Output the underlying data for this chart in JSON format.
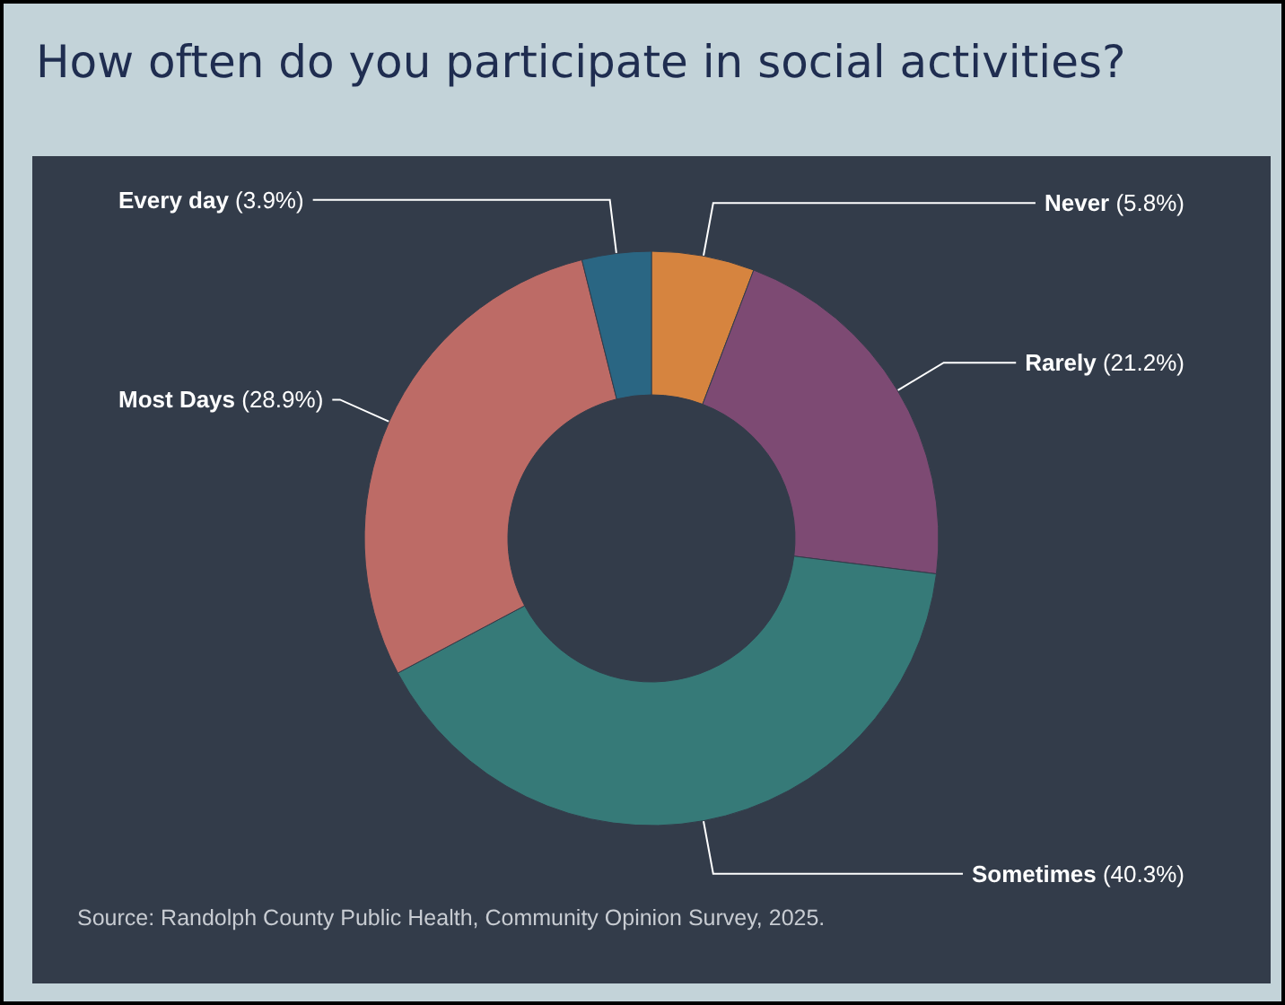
{
  "chart_data": {
    "type": "donut",
    "title": "How often do you participate in social activities?",
    "categories": [
      "Never",
      "Rarely",
      "Sometimes",
      "Most Days",
      "Every day"
    ],
    "values": [
      5.8,
      21.2,
      40.3,
      28.9,
      3.9
    ],
    "colors": [
      "#d6843f",
      "#7d4a73",
      "#367a78",
      "#bd6b66",
      "#2a6683"
    ],
    "value_labels": [
      "(5.8%)",
      "(21.2%)",
      "(40.3%)",
      "(28.9%)",
      "(3.9%)"
    ],
    "legend": false,
    "annotations": [
      "Source: Randolph County Public Health, Community Opinion Survey, 2025."
    ]
  }
}
